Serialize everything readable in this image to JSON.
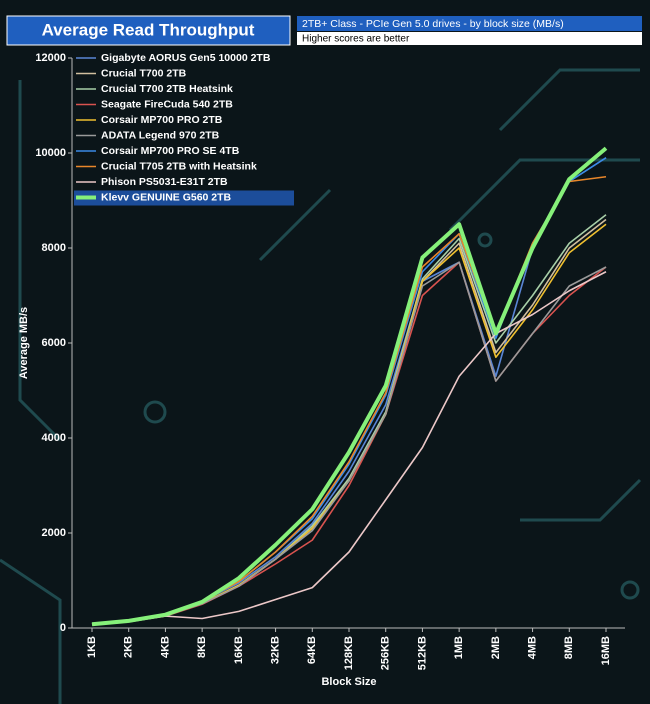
{
  "chart_data": {
    "type": "line",
    "title": "Average Read Throughput",
    "subtitle": "2TB+ Class - PCIe Gen 5.0  drives - by block size (MB/s)",
    "note": "Higher scores are better",
    "x_label": "Block Size",
    "y_label": "Average MB/s",
    "categories": [
      "1KB",
      "2KB",
      "4KB",
      "8KB",
      "16KB",
      "32KB",
      "64KB",
      "128KB",
      "256KB",
      "512KB",
      "1MB",
      "2MB",
      "4MB",
      "8MB",
      "16MB"
    ],
    "ylim": [
      0,
      12000
    ],
    "yticks": [
      0,
      2000,
      4000,
      6000,
      8000,
      10000,
      12000
    ],
    "legend": "upper left",
    "series": [
      {
        "name": "Gigabyte AORUS Gen5 10000 2TB",
        "color": "#5a86d6",
        "values": [
          80,
          150,
          270,
          560,
          950,
          1500,
          2200,
          3300,
          4700,
          7300,
          7700,
          5300,
          8000,
          9400,
          9900
        ]
      },
      {
        "name": "Crucial T700 2TB",
        "color": "#d2bfa0",
        "values": [
          75,
          145,
          260,
          520,
          900,
          1450,
          2100,
          3100,
          4500,
          7300,
          8100,
          5800,
          6800,
          8000,
          8600
        ]
      },
      {
        "name": "Crucial T700 2TB Heatsink",
        "color": "#a8cfa8",
        "values": [
          75,
          145,
          260,
          520,
          900,
          1450,
          2150,
          3150,
          4550,
          7350,
          8200,
          6000,
          7000,
          8100,
          8700
        ]
      },
      {
        "name": "Seagate FireCuda 540 2TB",
        "color": "#d9534f",
        "values": [
          70,
          140,
          250,
          500,
          880,
          1350,
          1850,
          3000,
          4500,
          7000,
          7700,
          5200,
          6200,
          7000,
          7600
        ]
      },
      {
        "name": "Corsair MP700 PRO 2TB",
        "color": "#f0c030",
        "values": [
          75,
          145,
          260,
          520,
          900,
          1450,
          2100,
          3100,
          4500,
          7300,
          8000,
          5700,
          6700,
          7900,
          8500
        ]
      },
      {
        "name": "ADATA Legend 970 2TB",
        "color": "#9a9a9a",
        "values": [
          75,
          145,
          260,
          510,
          880,
          1450,
          2050,
          3100,
          4500,
          7200,
          7700,
          5200,
          6200,
          7200,
          7600
        ]
      },
      {
        "name": "Corsair MP700 PRO SE 4TB",
        "color": "#3a8ae6",
        "values": [
          80,
          150,
          275,
          560,
          980,
          1600,
          2300,
          3450,
          4900,
          7500,
          8300,
          6100,
          8100,
          9400,
          9900
        ]
      },
      {
        "name": "Crucial T705 2TB with Heatsink",
        "color": "#e8862a",
        "values": [
          80,
          150,
          275,
          560,
          980,
          1600,
          2350,
          3500,
          4950,
          7600,
          8300,
          6200,
          8100,
          9400,
          9500
        ]
      },
      {
        "name": "Phison PS5031-E31T 2TB",
        "color": "#ecc8c8",
        "values": [
          80,
          130,
          250,
          200,
          350,
          600,
          850,
          1600,
          2700,
          3800,
          5300,
          6200,
          6600,
          7100,
          7500
        ]
      },
      {
        "name": "Klevv GENUINE G560 2TB",
        "color": "#86f07a",
        "highlight": true,
        "values": [
          80,
          150,
          280,
          550,
          1050,
          1750,
          2500,
          3700,
          5100,
          7800,
          8500,
          6200,
          8000,
          9450,
          10100
        ]
      }
    ]
  }
}
